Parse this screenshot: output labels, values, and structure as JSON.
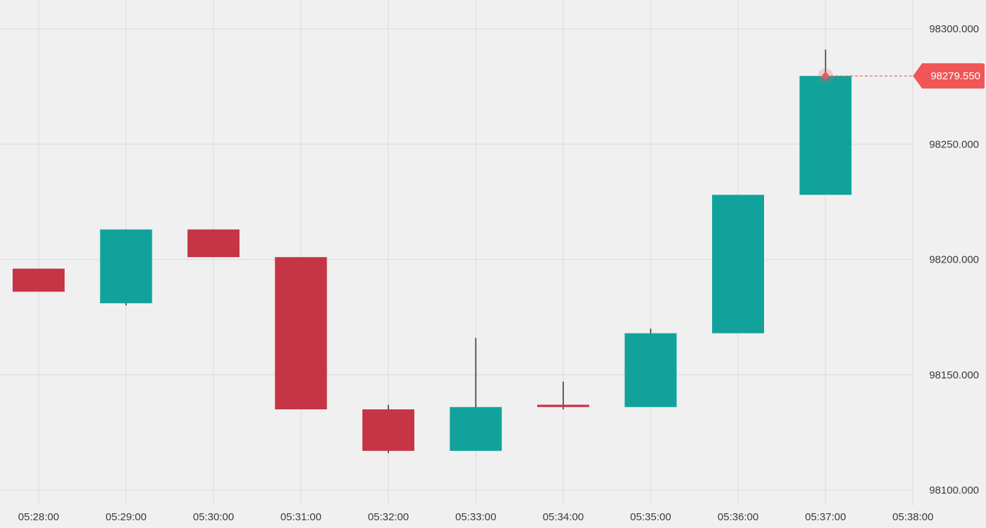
{
  "chart_data": {
    "type": "candlestick",
    "title": "",
    "xlabel": "",
    "ylabel": "",
    "grid": true,
    "x_ticks": [
      "05:28:00",
      "05:29:00",
      "05:30:00",
      "05:31:00",
      "05:32:00",
      "05:33:00",
      "05:34:00",
      "05:35:00",
      "05:36:00",
      "05:37:00",
      "05:38:00"
    ],
    "y_ticks": [
      "98100.000",
      "98150.000",
      "98200.000",
      "98250.000",
      "98300.000"
    ],
    "ylim": [
      98100,
      98300
    ],
    "candles": [
      {
        "time": "05:28:00",
        "open": 98196,
        "high": 98196,
        "low": 98186,
        "close": 98186
      },
      {
        "time": "05:29:00",
        "open": 98181,
        "high": 98213,
        "low": 98180,
        "close": 98213
      },
      {
        "time": "05:30:00",
        "open": 98213,
        "high": 98213,
        "low": 98201,
        "close": 98201
      },
      {
        "time": "05:31:00",
        "open": 98201,
        "high": 98201,
        "low": 98135,
        "close": 98135
      },
      {
        "time": "05:32:00",
        "open": 98135,
        "high": 98137,
        "low": 98116,
        "close": 98117
      },
      {
        "time": "05:33:00",
        "open": 98117,
        "high": 98166,
        "low": 98117,
        "close": 98136
      },
      {
        "time": "05:34:00",
        "open": 98137,
        "high": 98147,
        "low": 98135,
        "close": 98136
      },
      {
        "time": "05:35:00",
        "open": 98136,
        "high": 98170,
        "low": 98136,
        "close": 98168
      },
      {
        "time": "05:36:00",
        "open": 98168,
        "high": 98228,
        "low": 98168,
        "close": 98228
      },
      {
        "time": "05:37:00",
        "open": 98228,
        "high": 98291,
        "low": 98228,
        "close": 98279.55
      }
    ],
    "last_price": {
      "value": 98279.55,
      "label": "98279.550"
    },
    "colors": {
      "up": "#11a39b",
      "down": "#c53545",
      "wick": "#3a3a3a",
      "grid": "#dedede",
      "background": "#f0f0f0",
      "price_tag": "#f05656"
    }
  }
}
